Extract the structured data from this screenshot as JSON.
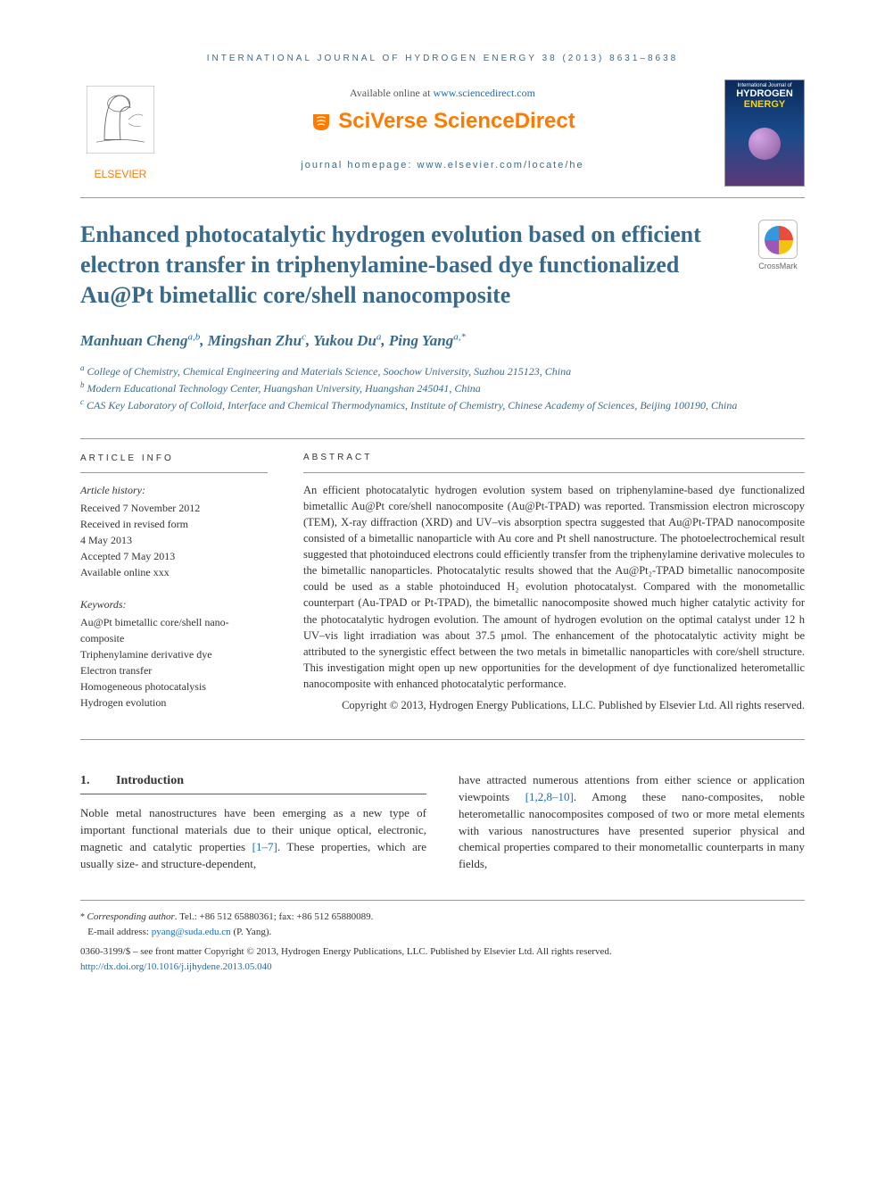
{
  "journal_header": "INTERNATIONAL JOURNAL OF HYDROGEN ENERGY 38 (2013) 8631–8638",
  "header": {
    "available_prefix": "Available online at ",
    "available_link": "www.sciencedirect.com",
    "sciverse": "SciVerse ScienceDirect",
    "homepage_prefix": "journal homepage: ",
    "homepage_link": "www.elsevier.com/locate/he",
    "elsevier": "ELSEVIER",
    "cover_top": "International Journal of",
    "cover_mid": "HYDROGEN",
    "cover_bot": "ENERGY"
  },
  "crossmark": "CrossMark",
  "title": "Enhanced photocatalytic hydrogen evolution based on efficient electron transfer in triphenylamine-based dye functionalized Au@Pt bimetallic core/shell nanocomposite",
  "authors": [
    {
      "name": "Manhuan Cheng",
      "aff": "a,b"
    },
    {
      "name": "Mingshan Zhu",
      "aff": "c"
    },
    {
      "name": "Yukou Du",
      "aff": "a"
    },
    {
      "name": "Ping Yang",
      "aff": "a,*"
    }
  ],
  "affiliations": [
    {
      "sup": "a",
      "text": "College of Chemistry, Chemical Engineering and Materials Science, Soochow University, Suzhou 215123, China"
    },
    {
      "sup": "b",
      "text": "Modern Educational Technology Center, Huangshan University, Huangshan 245041, China"
    },
    {
      "sup": "c",
      "text": "CAS Key Laboratory of Colloid, Interface and Chemical Thermodynamics, Institute of Chemistry, Chinese Academy of Sciences, Beijing 100190, China"
    }
  ],
  "info": {
    "heading": "ARTICLE INFO",
    "history_label": "Article history:",
    "history": [
      "Received 7 November 2012",
      "Received in revised form",
      "4 May 2013",
      "Accepted 7 May 2013",
      "Available online xxx"
    ],
    "keywords_label": "Keywords:",
    "keywords": [
      "Au@Pt bimetallic core/shell nano-composite",
      "Triphenylamine derivative dye",
      "Electron transfer",
      "Homogeneous photocatalysis",
      "Hydrogen evolution"
    ]
  },
  "abstract": {
    "heading": "ABSTRACT",
    "text": "An efficient photocatalytic hydrogen evolution system based on triphenylamine-based dye functionalized bimetallic Au@Pt core/shell nanocomposite (Au@Pt-TPAD) was reported. Transmission electron microscopy (TEM), X-ray diffraction (XRD) and UV–vis absorption spectra suggested that Au@Pt-TPAD nanocomposite consisted of a bimetallic nanoparticle with Au core and Pt shell nanostructure. The photoelectrochemical result suggested that photoinduced electrons could efficiently transfer from the triphenylamine derivative molecules to the bimetallic nanoparticles. Photocatalytic results showed that the Au@Pt₂-TPAD bimetallic nanocomposite could be used as a stable photoinduced H₂ evolution photocatalyst. Compared with the monometallic counterpart (Au-TPAD or Pt-TPAD), the bimetallic nanocomposite showed much higher catalytic activity for the photocatalytic hydrogen evolution. The amount of hydrogen evolution on the optimal catalyst under 12 h UV–vis light irradiation was about 37.5 μmol. The enhancement of the photocatalytic activity might be attributed to the synergistic effect between the two metals in bimetallic nanoparticles with core/shell structure. This investigation might open up new opportunities for the development of dye functionalized heterometallic nanocomposite with enhanced photocatalytic performance.",
    "copyright": "Copyright © 2013, Hydrogen Energy Publications, LLC. Published by Elsevier Ltd. All rights reserved."
  },
  "section": {
    "num": "1.",
    "heading": "Introduction",
    "col1_pre": "Noble metal nanostructures have been emerging as a new type of important functional materials due to their unique optical, electronic, magnetic and catalytic properties ",
    "col1_ref": "[1–7]",
    "col1_post": ". These properties, which are usually size- and structure-dependent,",
    "col2_pre": "have attracted numerous attentions from either science or application viewpoints ",
    "col2_ref": "[1,2,8–10]",
    "col2_post": ". Among these nano-composites, noble heterometallic nanocomposites composed of two or more metal elements with various nanostructures have presented superior physical and chemical properties compared to their monometallic counterparts in many fields,"
  },
  "footer": {
    "corr_label": "Corresponding author",
    "corr_contact": ". Tel.: +86 512 65880361; fax: +86 512 65880089.",
    "email_label": "E-mail address: ",
    "email": "pyang@suda.edu.cn",
    "email_suffix": " (P. Yang).",
    "meta": "0360-3199/$ – see front matter Copyright © 2013, Hydrogen Energy Publications, LLC. Published by Elsevier Ltd. All rights reserved.",
    "doi": "http://dx.doi.org/10.1016/j.ijhydene.2013.05.040"
  },
  "colors": {
    "brand_blue": "#3a6a8a",
    "link_blue": "#1a6bb8",
    "elsevier_orange": "#ff7a00"
  }
}
